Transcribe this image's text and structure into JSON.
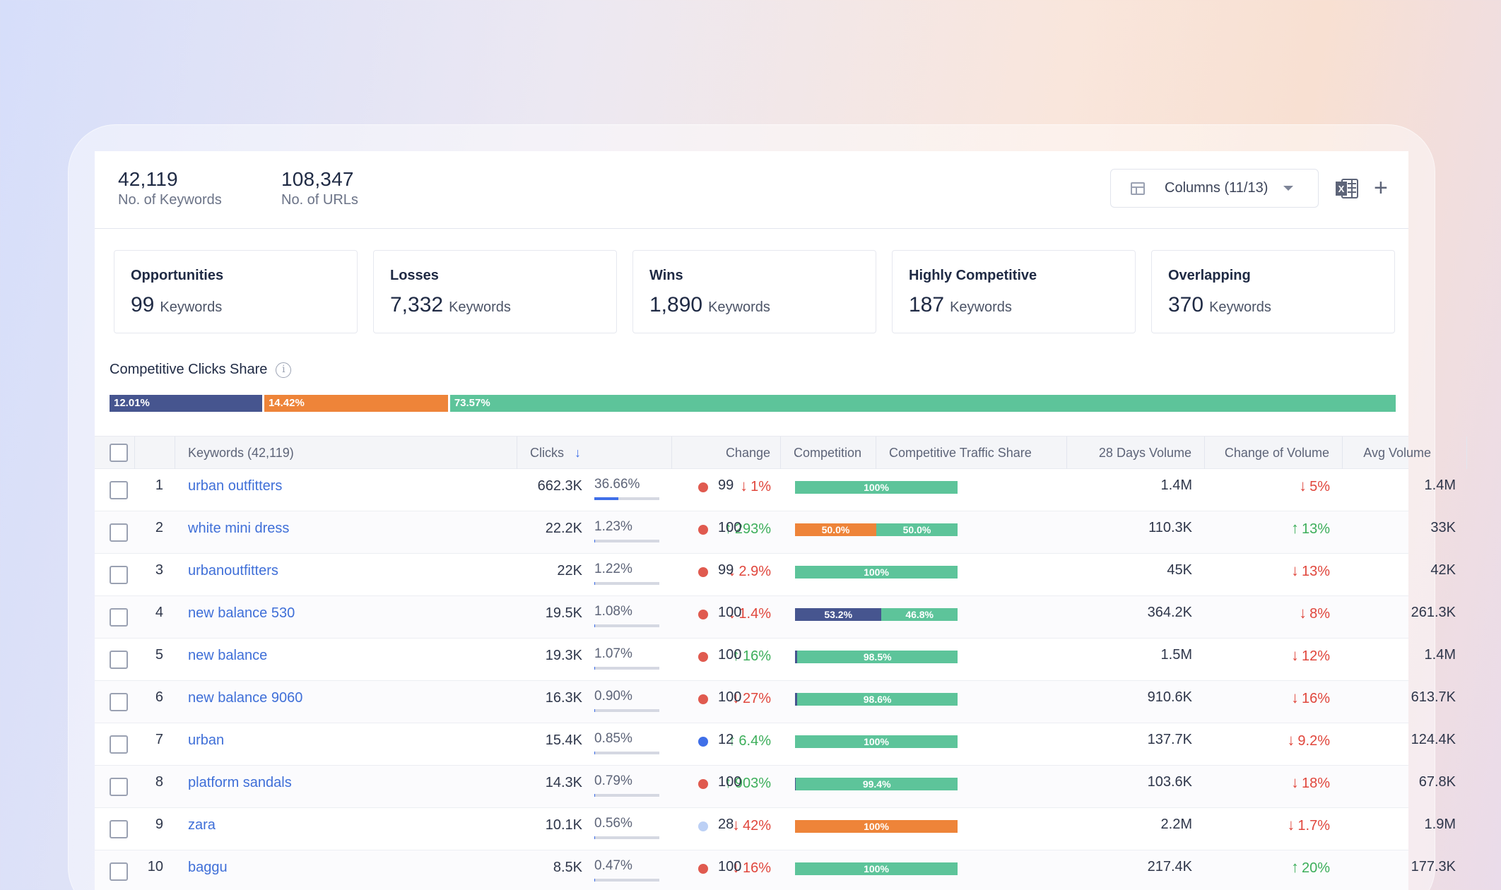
{
  "header": {
    "keywords_count": "42,119",
    "keywords_label": "No. of Keywords",
    "urls_count": "108,347",
    "urls_label": "No. of URLs",
    "columns_button": "Columns (11/13)"
  },
  "cards": [
    {
      "title": "Opportunities",
      "value": "99",
      "unit": "Keywords"
    },
    {
      "title": "Losses",
      "value": "7,332",
      "unit": "Keywords"
    },
    {
      "title": "Wins",
      "value": "1,890",
      "unit": "Keywords"
    },
    {
      "title": "Highly Competitive",
      "value": "187",
      "unit": "Keywords"
    },
    {
      "title": "Overlapping",
      "value": "370",
      "unit": "Keywords"
    }
  ],
  "clicks_share": {
    "title": "Competitive Clicks Share",
    "segments": [
      {
        "label": "12.01%",
        "value": 12.01,
        "color": "#46558f"
      },
      {
        "label": "14.42%",
        "value": 14.42,
        "color": "#ee8439"
      },
      {
        "label": "73.57%",
        "value": 73.57,
        "color": "#5dc49a"
      }
    ]
  },
  "colors": {
    "navy": "#46558f",
    "orange": "#ee8439",
    "green": "#5dc49a",
    "red_dot": "#e05a4f",
    "blue_dot": "#3f6fe8",
    "light_dot": "#bcd0f5"
  },
  "table": {
    "headers": {
      "keywords": "Keywords (42,119)",
      "clicks": "Clicks",
      "change": "Change",
      "competition": "Competition",
      "traffic_share": "Competitive Traffic Share",
      "volume_28": "28 Days Volume",
      "change_volume": "Change of Volume",
      "avg_volume": "Avg Volume"
    },
    "rows": [
      {
        "n": "1",
        "kw": "urban outfitters",
        "clicks": "662.3K",
        "pct": "36.66%",
        "pct_v": 36.66,
        "chg": "1%",
        "chg_dir": "down",
        "comp": "99",
        "dot": "red",
        "ts": [
          {
            "label": "100%",
            "v": 100,
            "c": "green"
          }
        ],
        "vol28": "1.4M",
        "cvol": "5%",
        "cvol_dir": "down",
        "avg": "1.4M"
      },
      {
        "n": "2",
        "kw": "white mini dress",
        "clicks": "22.2K",
        "pct": "1.23%",
        "pct_v": 1.23,
        "chg": "293%",
        "chg_dir": "up",
        "comp": "100",
        "dot": "red",
        "ts": [
          {
            "label": "50.0%",
            "v": 50,
            "c": "orange"
          },
          {
            "label": "50.0%",
            "v": 50,
            "c": "green"
          }
        ],
        "vol28": "110.3K",
        "cvol": "13%",
        "cvol_dir": "up",
        "avg": "33K"
      },
      {
        "n": "3",
        "kw": "urbanoutfitters",
        "clicks": "22K",
        "pct": "1.22%",
        "pct_v": 1.22,
        "chg": "2.9%",
        "chg_dir": "down",
        "comp": "99",
        "dot": "red",
        "ts": [
          {
            "label": "100%",
            "v": 100,
            "c": "green"
          }
        ],
        "vol28": "45K",
        "cvol": "13%",
        "cvol_dir": "down",
        "avg": "42K"
      },
      {
        "n": "4",
        "kw": "new balance 530",
        "clicks": "19.5K",
        "pct": "1.08%",
        "pct_v": 1.08,
        "chg": "1.4%",
        "chg_dir": "down",
        "comp": "100",
        "dot": "red",
        "ts": [
          {
            "label": "53.2%",
            "v": 53.2,
            "c": "navy"
          },
          {
            "label": "46.8%",
            "v": 46.8,
            "c": "green"
          }
        ],
        "vol28": "364.2K",
        "cvol": "8%",
        "cvol_dir": "down",
        "avg": "261.3K"
      },
      {
        "n": "5",
        "kw": "new balance",
        "clicks": "19.3K",
        "pct": "1.07%",
        "pct_v": 1.07,
        "chg": "16%",
        "chg_dir": "up",
        "comp": "100",
        "dot": "red",
        "ts": [
          {
            "label": "",
            "v": 1.5,
            "c": "navy"
          },
          {
            "label": "98.5%",
            "v": 98.5,
            "c": "green"
          }
        ],
        "vol28": "1.5M",
        "cvol": "12%",
        "cvol_dir": "down",
        "avg": "1.4M"
      },
      {
        "n": "6",
        "kw": "new balance 9060",
        "clicks": "16.3K",
        "pct": "0.90%",
        "pct_v": 0.9,
        "chg": "27%",
        "chg_dir": "down",
        "comp": "100",
        "dot": "red",
        "ts": [
          {
            "label": "",
            "v": 1.4,
            "c": "navy"
          },
          {
            "label": "98.6%",
            "v": 98.6,
            "c": "green"
          }
        ],
        "vol28": "910.6K",
        "cvol": "16%",
        "cvol_dir": "down",
        "avg": "613.7K"
      },
      {
        "n": "7",
        "kw": "urban",
        "clicks": "15.4K",
        "pct": "0.85%",
        "pct_v": 0.85,
        "chg": "6.4%",
        "chg_dir": "up",
        "comp": "12",
        "dot": "blue",
        "ts": [
          {
            "label": "100%",
            "v": 100,
            "c": "green"
          }
        ],
        "vol28": "137.7K",
        "cvol": "9.2%",
        "cvol_dir": "down",
        "avg": "124.4K"
      },
      {
        "n": "8",
        "kw": "platform sandals",
        "clicks": "14.3K",
        "pct": "0.79%",
        "pct_v": 0.79,
        "chg": "903%",
        "chg_dir": "up",
        "comp": "100",
        "dot": "red",
        "ts": [
          {
            "label": "",
            "v": 0.6,
            "c": "navy"
          },
          {
            "label": "99.4%",
            "v": 99.4,
            "c": "green"
          }
        ],
        "vol28": "103.6K",
        "cvol": "18%",
        "cvol_dir": "down",
        "avg": "67.8K"
      },
      {
        "n": "9",
        "kw": "zara",
        "clicks": "10.1K",
        "pct": "0.56%",
        "pct_v": 0.56,
        "chg": "42%",
        "chg_dir": "down",
        "comp": "28",
        "dot": "light",
        "ts": [
          {
            "label": "100%",
            "v": 100,
            "c": "orange"
          }
        ],
        "vol28": "2.2M",
        "cvol": "1.7%",
        "cvol_dir": "down",
        "avg": "1.9M"
      },
      {
        "n": "10",
        "kw": "baggu",
        "clicks": "8.5K",
        "pct": "0.47%",
        "pct_v": 0.47,
        "chg": "16%",
        "chg_dir": "down",
        "comp": "100",
        "dot": "red",
        "ts": [
          {
            "label": "100%",
            "v": 100,
            "c": "green"
          }
        ],
        "vol28": "217.4K",
        "cvol": "20%",
        "cvol_dir": "up",
        "avg": "177.3K"
      }
    ]
  }
}
